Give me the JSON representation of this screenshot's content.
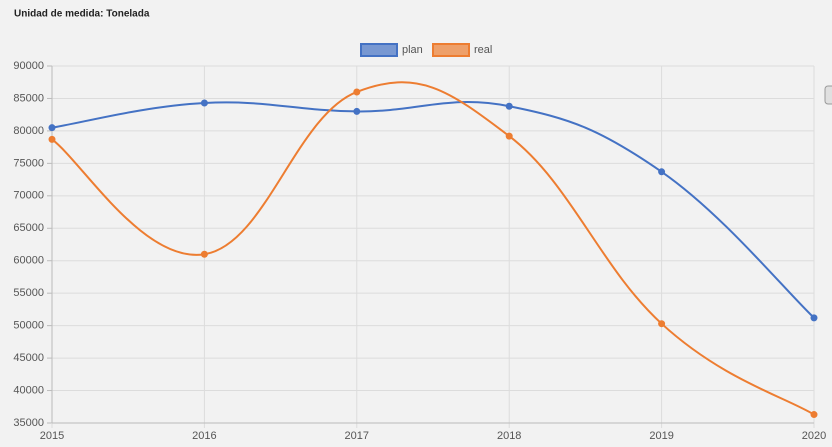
{
  "chart_data": {
    "type": "line",
    "title": "Unidad de medida: Tonelada",
    "x": [
      2015,
      2016,
      2017,
      2018,
      2019,
      2020
    ],
    "series": [
      {
        "name": "plan",
        "color": "#4472c4",
        "values": [
          80500,
          84300,
          83000,
          83800,
          73700,
          51200
        ]
      },
      {
        "name": "real",
        "color": "#ed7d31",
        "values": [
          78700,
          61000,
          86000,
          79200,
          50300,
          36300
        ]
      }
    ],
    "xlim": [
      2015,
      2020
    ],
    "xticks": [
      2015,
      2016,
      2017,
      2018,
      2019,
      2020
    ],
    "ylim": [
      35000,
      90000
    ],
    "yticks": [
      35000,
      40000,
      45000,
      50000,
      55000,
      60000,
      65000,
      70000,
      75000,
      80000,
      85000,
      90000
    ],
    "grid": true,
    "legend": "top"
  }
}
